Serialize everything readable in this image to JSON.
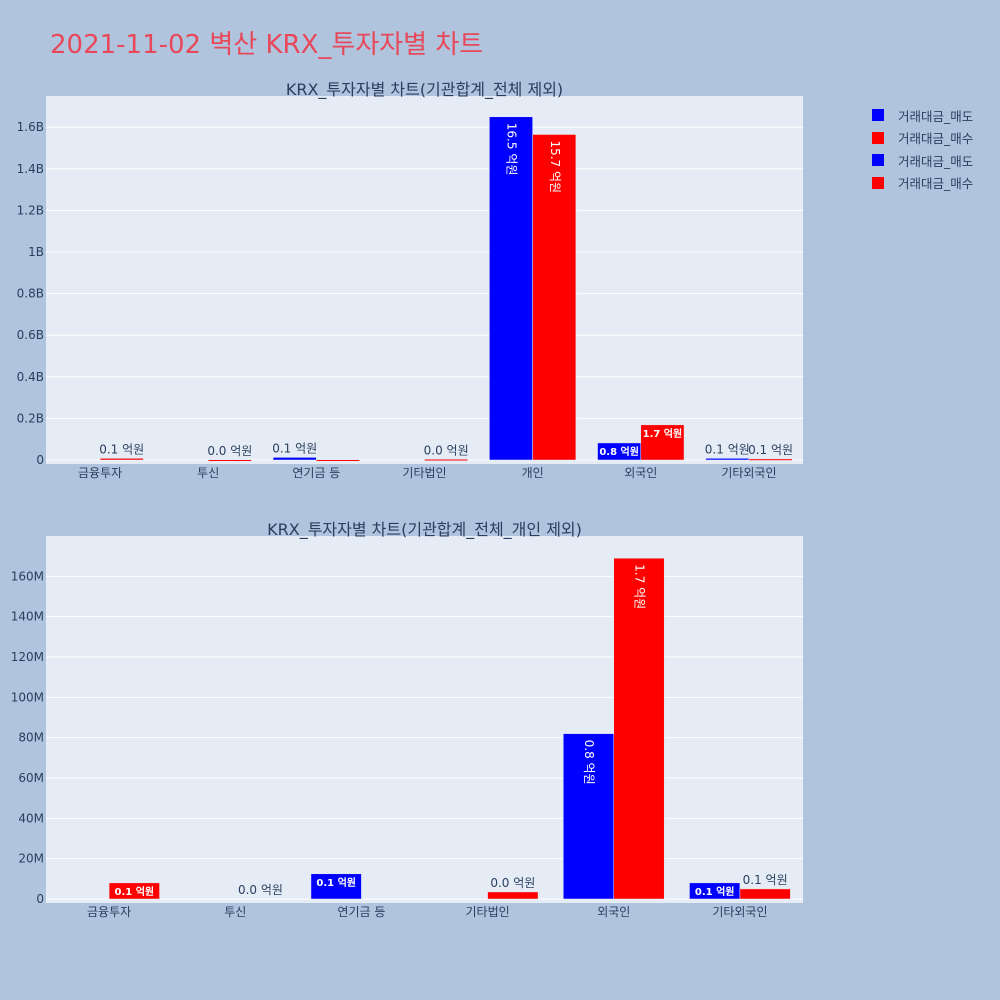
{
  "page": {
    "title": "2021-11-02 벽산 KRX_투자자별 차트"
  },
  "legend": {
    "items": [
      {
        "label": "거래대금_매도",
        "color": "#0000ff"
      },
      {
        "label": "거래대금_매수",
        "color": "#ff0000"
      },
      {
        "label": "거래대금_매도",
        "color": "#0000ff"
      },
      {
        "label": "거래대금_매수",
        "color": "#ff0000"
      }
    ]
  },
  "chart_data": [
    {
      "type": "bar",
      "title": "KRX_투자자별 차트(기관합계_전체 제외)",
      "categories": [
        "금융투자",
        "투신",
        "연기금 등",
        "기타법인",
        "개인",
        "외국인",
        "기타외국인"
      ],
      "ylim": [
        0,
        1750000000
      ],
      "yticks": [
        0,
        200000000,
        400000000,
        600000000,
        800000000,
        1000000000,
        1200000000,
        1400000000,
        1600000000
      ],
      "ytick_labels": [
        "0",
        "0.2B",
        "0.4B",
        "0.6B",
        "0.8B",
        "1B",
        "1.2B",
        "1.4B",
        "1.6B"
      ],
      "grid": true,
      "series": [
        {
          "name": "거래대금_매도",
          "color": "#0000ff",
          "values": [
            0,
            0,
            12500000,
            0,
            1650000000,
            82000000,
            8000000
          ],
          "labels": [
            "",
            "",
            "0.1 억원",
            "",
            "16.5 억원",
            "0.8 억원",
            "0.1 억원"
          ]
        },
        {
          "name": "거래대금_매수",
          "color": "#ff0000",
          "values": [
            8000000,
            1000000,
            1000000,
            3500000,
            1565000000,
            169000000,
            5000000
          ],
          "labels": [
            "0.1 억원",
            "0.0 억원",
            "",
            "0.0 억원",
            "15.7 억원",
            "1.7 억원",
            "0.1 억원"
          ]
        }
      ]
    },
    {
      "type": "bar",
      "title": "KRX_투자자별 차트(기관합계_전체_개인 제외)",
      "categories": [
        "금융투자",
        "투신",
        "연기금 등",
        "기타법인",
        "외국인",
        "기타외국인"
      ],
      "ylim": [
        0,
        180000000
      ],
      "yticks": [
        0,
        20000000,
        40000000,
        60000000,
        80000000,
        100000000,
        120000000,
        140000000,
        160000000
      ],
      "ytick_labels": [
        "0",
        "20M",
        "40M",
        "60M",
        "80M",
        "100M",
        "120M",
        "140M",
        "160M"
      ],
      "grid": true,
      "series": [
        {
          "name": "거래대금_매도",
          "color": "#0000ff",
          "values": [
            0,
            0,
            12500000,
            0,
            82000000,
            8000000
          ],
          "labels": [
            "",
            "",
            "0.1 억원",
            "",
            "0.8 억원",
            "0.1 억원"
          ]
        },
        {
          "name": "거래대금_매수",
          "color": "#ff0000",
          "values": [
            8000000,
            0,
            0,
            3500000,
            169000000,
            5000000
          ],
          "labels": [
            "0.1 억원",
            "0.0 억원",
            "",
            "0.0 억원",
            "1.7 억원",
            "0.1 억원"
          ]
        }
      ]
    }
  ]
}
